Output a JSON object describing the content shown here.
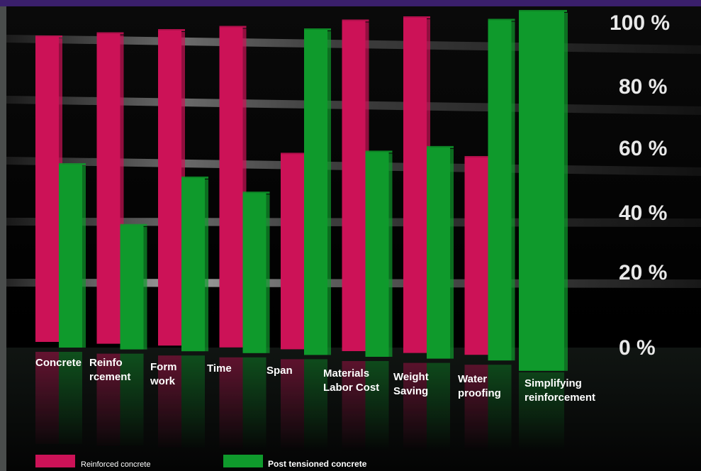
{
  "chart_data": {
    "type": "bar",
    "categories": [
      [
        "Concrete"
      ],
      [
        "Reinfo",
        "rcement"
      ],
      [
        "Form",
        "work"
      ],
      [
        "Time"
      ],
      [
        "Span"
      ],
      [
        "Materials",
        "Labor Cost"
      ],
      [
        "Weight",
        "Saving"
      ],
      [
        "Water",
        "proofing"
      ],
      [
        "Simplifying",
        "reinforcement"
      ]
    ],
    "series": [
      {
        "name": "Reinforced concrete",
        "values": [
          100,
          100,
          100,
          100,
          60,
          100,
          100,
          58,
          null
        ]
      },
      {
        "name": "Post tensioned concrete",
        "values": [
          60,
          40,
          55,
          50,
          100,
          62,
          63,
          100,
          100
        ]
      }
    ],
    "yticks": [
      "0 %",
      "20 %",
      "40 %",
      "60 %",
      "80 %",
      "100 %"
    ],
    "ylim": [
      0,
      100
    ],
    "legend_position": "bottom-left",
    "colors": {
      "reinforced": "#cc1257",
      "post_tensioned": "#0f9a2c"
    }
  }
}
